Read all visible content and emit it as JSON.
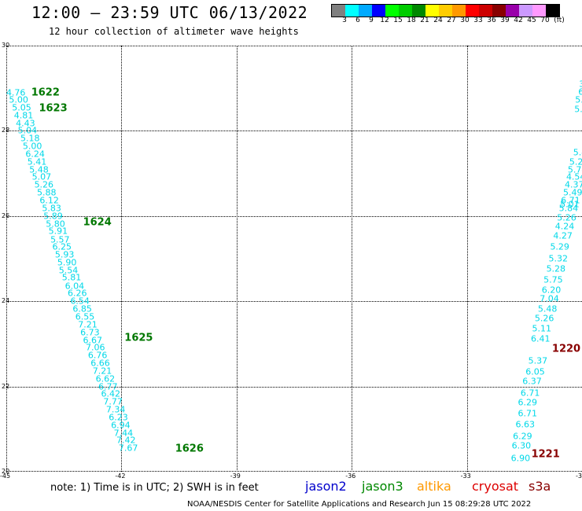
{
  "title": "12:00 – 23:59 UTC 06/13/2022",
  "subtitle": "12 hour collection of altimeter wave heights",
  "colorbar": {
    "unit_label": "(ft)",
    "colors": [
      "#808080",
      "#00ffff",
      "#00aaff",
      "#0000ff",
      "#00ff00",
      "#00cc00",
      "#008800",
      "#ffff00",
      "#ffcc00",
      "#ff9900",
      "#ff0000",
      "#cc0000",
      "#880000",
      "#9900aa",
      "#cc99ff",
      "#ff99ff",
      "#000000"
    ],
    "labels": [
      "3",
      "6",
      "9",
      "12",
      "15",
      "18",
      "21",
      "24",
      "27",
      "30",
      "33",
      "36",
      "39",
      "42",
      "45",
      "70"
    ]
  },
  "map": {
    "lon_min": -45,
    "lon_max": -30,
    "lat_min": 20,
    "lat_max": 30,
    "lon_ticks": [
      "-45",
      "-42",
      "-39",
      "-36",
      "-33",
      "-30"
    ],
    "lat_ticks": [
      "20",
      "22",
      "24",
      "26",
      "28",
      "30"
    ]
  },
  "observations": {
    "color": "#00d8e8",
    "track1": [
      {
        "lat": 28.9,
        "lon": -44.75,
        "value": "4.76"
      },
      {
        "lat": 28.73,
        "lon": -44.68,
        "value": "5.00"
      },
      {
        "lat": 28.55,
        "lon": -44.6,
        "value": "5.05"
      },
      {
        "lat": 28.36,
        "lon": -44.55,
        "value": "4.81"
      },
      {
        "lat": 28.18,
        "lon": -44.5,
        "value": "4.43"
      },
      {
        "lat": 28.0,
        "lon": -44.45,
        "value": "5.04"
      },
      {
        "lat": 27.82,
        "lon": -44.38,
        "value": "5.18"
      },
      {
        "lat": 27.64,
        "lon": -44.32,
        "value": "5.00"
      },
      {
        "lat": 27.45,
        "lon": -44.25,
        "value": "6.24"
      },
      {
        "lat": 27.27,
        "lon": -44.2,
        "value": "5.41"
      },
      {
        "lat": 27.09,
        "lon": -44.15,
        "value": "5.48"
      },
      {
        "lat": 26.91,
        "lon": -44.08,
        "value": "5.07"
      },
      {
        "lat": 26.73,
        "lon": -44.02,
        "value": "5.26"
      },
      {
        "lat": 26.55,
        "lon": -43.95,
        "value": "5.88"
      },
      {
        "lat": 26.36,
        "lon": -43.88,
        "value": "6.12"
      },
      {
        "lat": 26.18,
        "lon": -43.82,
        "value": "5.83"
      },
      {
        "lat": 26.0,
        "lon": -43.78,
        "value": "5.89"
      },
      {
        "lat": 25.82,
        "lon": -43.72,
        "value": "5.80"
      },
      {
        "lat": 25.64,
        "lon": -43.65,
        "value": "5.91"
      },
      {
        "lat": 25.45,
        "lon": -43.6,
        "value": "5.57"
      },
      {
        "lat": 25.27,
        "lon": -43.55,
        "value": "6.25"
      },
      {
        "lat": 25.09,
        "lon": -43.48,
        "value": "5.93"
      },
      {
        "lat": 24.91,
        "lon": -43.42,
        "value": "5.90"
      },
      {
        "lat": 24.73,
        "lon": -43.38,
        "value": "5.54"
      },
      {
        "lat": 24.55,
        "lon": -43.3,
        "value": "5.81"
      },
      {
        "lat": 24.36,
        "lon": -43.22,
        "value": "6.04"
      },
      {
        "lat": 24.18,
        "lon": -43.15,
        "value": "6.26"
      },
      {
        "lat": 24.0,
        "lon": -43.08,
        "value": "6.54"
      },
      {
        "lat": 23.82,
        "lon": -43.02,
        "value": "6.85"
      },
      {
        "lat": 23.64,
        "lon": -42.95,
        "value": "6.55"
      },
      {
        "lat": 23.45,
        "lon": -42.88,
        "value": "7.21"
      },
      {
        "lat": 23.27,
        "lon": -42.82,
        "value": "6.73"
      },
      {
        "lat": 23.09,
        "lon": -42.75,
        "value": "6.67"
      },
      {
        "lat": 22.91,
        "lon": -42.68,
        "value": "7.06"
      },
      {
        "lat": 22.73,
        "lon": -42.62,
        "value": "6.76"
      },
      {
        "lat": 22.55,
        "lon": -42.55,
        "value": "6.66"
      },
      {
        "lat": 22.36,
        "lon": -42.5,
        "value": "7.21"
      },
      {
        "lat": 22.18,
        "lon": -42.42,
        "value": "6.62"
      },
      {
        "lat": 22.0,
        "lon": -42.35,
        "value": "6.77"
      },
      {
        "lat": 21.82,
        "lon": -42.28,
        "value": "6.42"
      },
      {
        "lat": 21.64,
        "lon": -42.22,
        "value": "7.77"
      },
      {
        "lat": 21.45,
        "lon": -42.15,
        "value": "7.34"
      },
      {
        "lat": 21.27,
        "lon": -42.08,
        "value": "6.23"
      },
      {
        "lat": 21.09,
        "lon": -42.02,
        "value": "6.94"
      },
      {
        "lat": 20.91,
        "lon": -41.95,
        "value": "7.44"
      },
      {
        "lat": 20.73,
        "lon": -41.88,
        "value": "7.42"
      },
      {
        "lat": 20.55,
        "lon": -41.82,
        "value": "7.67"
      }
    ],
    "track2": [
      {
        "lat": 27.5,
        "lon": -30.05,
        "value": "5.4"
      },
      {
        "lat": 27.27,
        "lon": -30.08,
        "value": "5.21"
      },
      {
        "lat": 27.09,
        "lon": -30.12,
        "value": "5.74"
      },
      {
        "lat": 26.91,
        "lon": -30.16,
        "value": "4.54"
      },
      {
        "lat": 26.73,
        "lon": -30.2,
        "value": "4.37"
      },
      {
        "lat": 26.55,
        "lon": -30.24,
        "value": "5.49"
      },
      {
        "lat": 26.36,
        "lon": -30.3,
        "value": "6.71"
      },
      {
        "lat": 26.27,
        "lon": -30.32,
        "value": "5.01"
      },
      {
        "lat": 26.18,
        "lon": -30.35,
        "value": "5.84"
      },
      {
        "lat": 25.96,
        "lon": -30.4,
        "value": "5.26"
      },
      {
        "lat": 25.76,
        "lon": -30.45,
        "value": "4.24"
      },
      {
        "lat": 25.53,
        "lon": -30.5,
        "value": "4.27"
      },
      {
        "lat": 25.27,
        "lon": -30.58,
        "value": "5.29"
      },
      {
        "lat": 25.0,
        "lon": -30.62,
        "value": "5.32"
      },
      {
        "lat": 24.76,
        "lon": -30.68,
        "value": "5.28"
      },
      {
        "lat": 24.5,
        "lon": -30.75,
        "value": "5.75"
      },
      {
        "lat": 24.27,
        "lon": -30.8,
        "value": "6.20"
      },
      {
        "lat": 24.05,
        "lon": -30.85,
        "value": "7.04"
      },
      {
        "lat": 23.82,
        "lon": -30.9,
        "value": "5.48"
      },
      {
        "lat": 23.6,
        "lon": -30.98,
        "value": "5.26"
      },
      {
        "lat": 23.35,
        "lon": -31.05,
        "value": "5.11"
      },
      {
        "lat": 23.12,
        "lon": -31.08,
        "value": "6.41"
      },
      {
        "lat": 22.6,
        "lon": -31.15,
        "value": "5.37"
      },
      {
        "lat": 22.35,
        "lon": -31.22,
        "value": "6.05"
      },
      {
        "lat": 22.12,
        "lon": -31.3,
        "value": "6.37"
      },
      {
        "lat": 21.85,
        "lon": -31.35,
        "value": "6.71"
      },
      {
        "lat": 21.63,
        "lon": -31.42,
        "value": "6.29"
      },
      {
        "lat": 21.36,
        "lon": -31.42,
        "value": "6.71"
      },
      {
        "lat": 21.1,
        "lon": -31.48,
        "value": "6.63"
      },
      {
        "lat": 20.83,
        "lon": -31.55,
        "value": "6.29"
      },
      {
        "lat": 20.6,
        "lon": -31.58,
        "value": "6.30"
      },
      {
        "lat": 20.32,
        "lon": -31.6,
        "value": "6.90"
      }
    ],
    "edge_clipped": [
      {
        "lat": 29.25,
        "lon": -29.93,
        "value": "5"
      },
      {
        "lat": 29.1,
        "lon": -29.97,
        "value": "3."
      },
      {
        "lat": 28.92,
        "lon": -29.99,
        "value": "6."
      },
      {
        "lat": 28.72,
        "lon": -30.0,
        "value": "5.0"
      },
      {
        "lat": 28.5,
        "lon": -30.02,
        "value": "5.4"
      }
    ]
  },
  "pass_times": [
    {
      "label": "1622",
      "lat": 28.9,
      "lon": -44.35,
      "color": "#007700"
    },
    {
      "label": "1623",
      "lat": 28.53,
      "lon": -44.15,
      "color": "#007700"
    },
    {
      "label": "1624",
      "lat": 25.85,
      "lon": -43.0,
      "color": "#007700"
    },
    {
      "label": "1625",
      "lat": 23.13,
      "lon": -41.92,
      "color": "#007700"
    },
    {
      "label": "1626",
      "lat": 20.53,
      "lon": -40.6,
      "color": "#007700"
    },
    {
      "label": "1220",
      "lat": 22.87,
      "lon": -30.78,
      "color": "#880000"
    },
    {
      "label": "1221",
      "lat": 20.4,
      "lon": -31.32,
      "color": "#880000"
    }
  ],
  "footer": {
    "note": "note:  1) Time is in UTC;  2) SWH is in feet",
    "satellites": [
      {
        "name": "jason2",
        "color": "#0000cc"
      },
      {
        "name": "jason3",
        "color": "#008800"
      },
      {
        "name": "altika",
        "color": "#ff9900"
      },
      {
        "name": "cryosat",
        "color": "#dd0000"
      },
      {
        "name": "s3a",
        "color": "#880000"
      }
    ],
    "credit": "NOAA/NESDIS Center for Satellite Applications and Research    Jun 15 08:29:28 UTC 2022"
  }
}
